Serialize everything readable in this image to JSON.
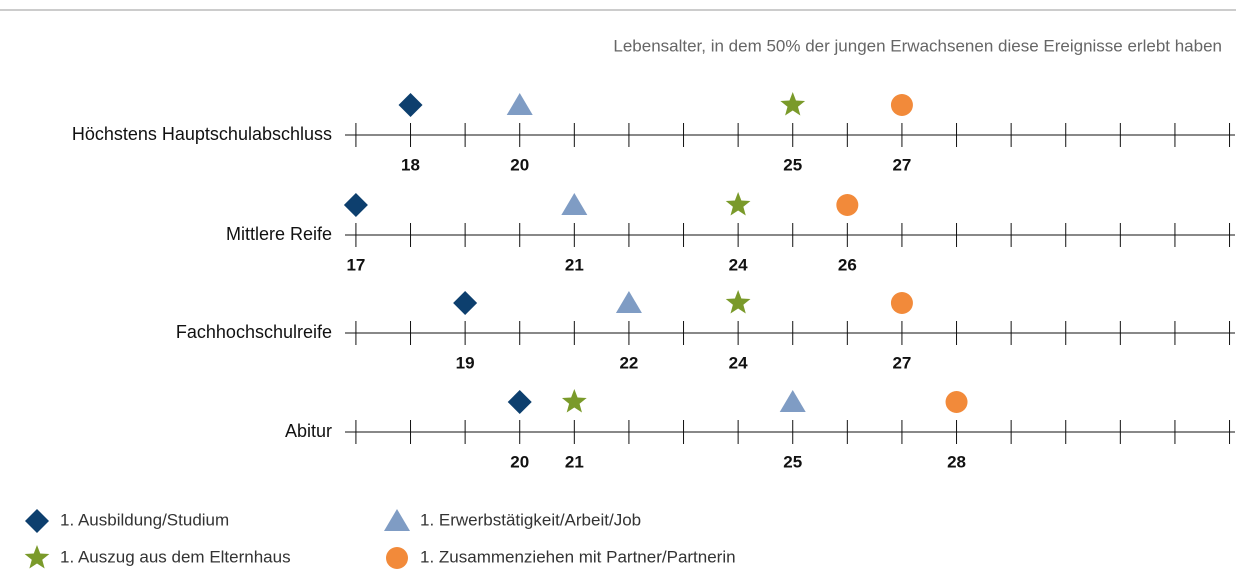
{
  "chart_data": {
    "type": "dot",
    "subtitle": "Lebensalter, in dem 50% der jungen Erwachsenen diese Ereignisse erlebt haben",
    "categories": [
      "Höchstens Hauptschulabschluss",
      "Mittlere Reife",
      "Fachhochschulreife",
      "Abitur"
    ],
    "series": [
      {
        "name": "1. Ausbildung/Studium",
        "color": "#0d3f6e",
        "marker": "diamond",
        "values": [
          18,
          17,
          19,
          20
        ]
      },
      {
        "name": "1. Erwerbstätigkeit/Arbeit/Job",
        "color": "#7f9cc4",
        "marker": "triangle",
        "values": [
          20,
          21,
          22,
          25
        ]
      },
      {
        "name": "1. Auszug aus dem Elternhaus",
        "color": "#7a9a2a",
        "marker": "star",
        "values": [
          25,
          24,
          24,
          21
        ]
      },
      {
        "name": "1. Zusammenziehen mit Partner/Partnerin",
        "color": "#f28a3a",
        "marker": "circle",
        "values": [
          27,
          26,
          27,
          28
        ]
      }
    ],
    "xlim": [
      16.8,
      33.1
    ],
    "xticks": [
      17,
      18,
      19,
      20,
      21,
      22,
      23,
      24,
      25,
      26,
      27,
      28,
      29,
      30,
      31,
      32,
      33
    ],
    "legend": "bottom-left"
  }
}
